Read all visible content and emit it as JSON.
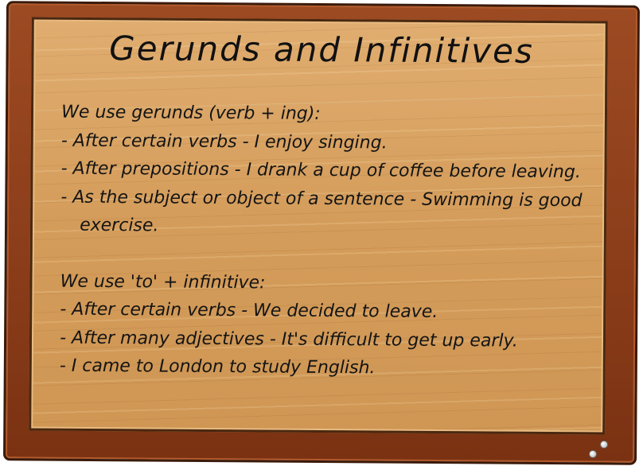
{
  "title": "Gerunds and Infinitives",
  "gerunds": {
    "heading": "We use gerunds (verb + ing):",
    "items": [
      "- After certain verbs - I enjoy singing.",
      "- After prepositions - I drank a cup of coffee before leaving.",
      "- As the subject or object of a sentence - Swimming is good exercise."
    ]
  },
  "infinitives": {
    "heading": "We use 'to' + infinitive:",
    "items": [
      "- After certain verbs - We decided to leave.",
      "- After many adjectives - It's difficult to get up early.",
      "- I came to London to study English."
    ]
  },
  "colors": {
    "frame": "#8a3c19",
    "board": "#d9a363",
    "text": "#141414"
  }
}
